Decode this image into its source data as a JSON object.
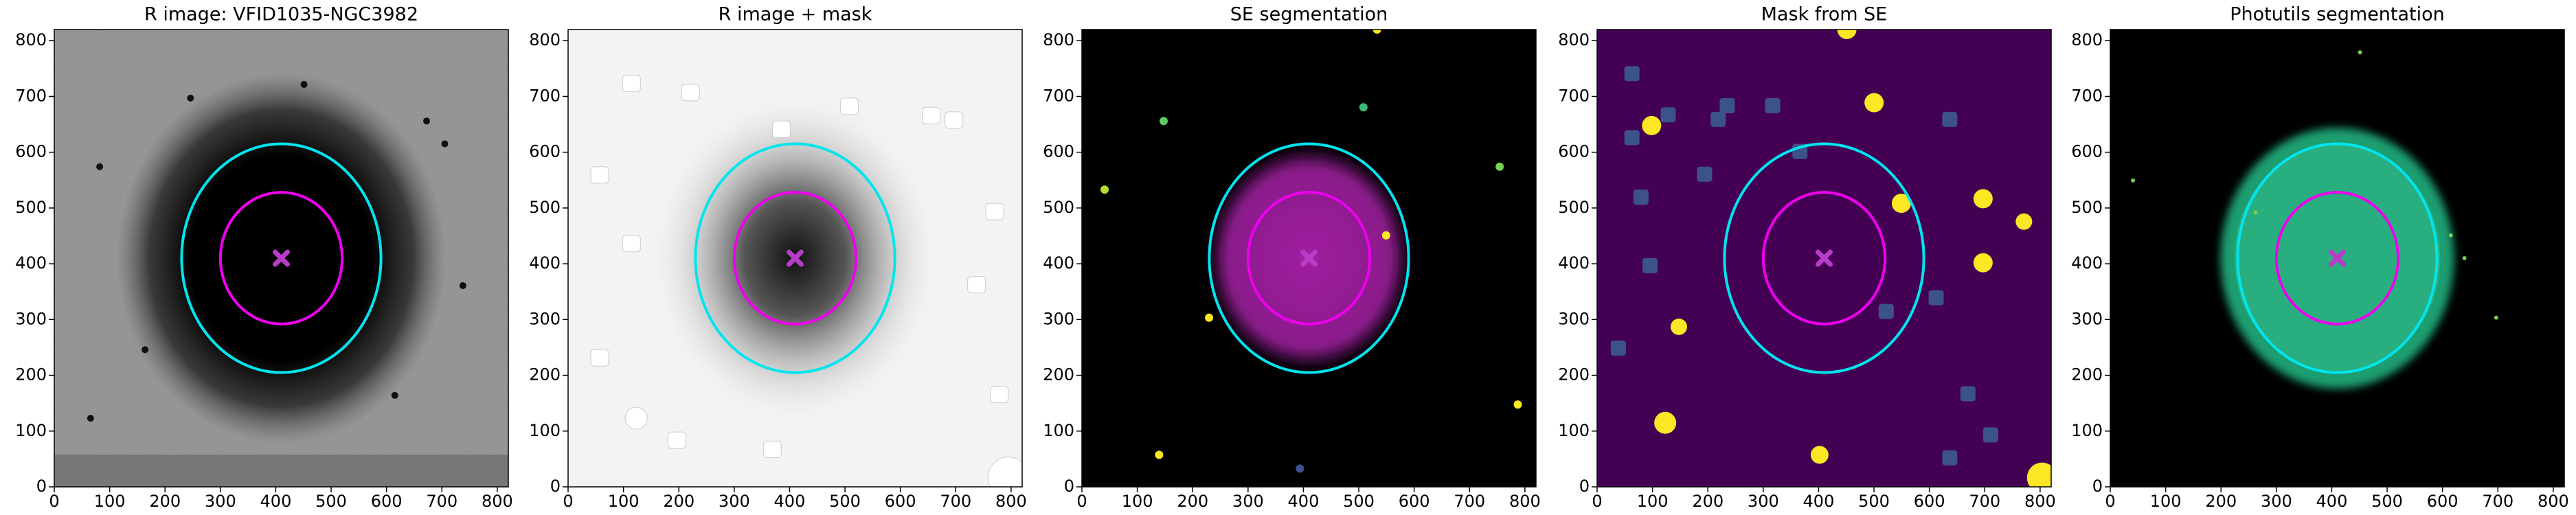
{
  "chart_data": [
    {
      "type": "image",
      "title": "R image: VFID1035-NGC3982",
      "xlim": [
        0,
        820
      ],
      "ylim": [
        0,
        820
      ],
      "xticks": [
        0,
        100,
        200,
        300,
        400,
        500,
        600,
        700,
        800
      ],
      "yticks": [
        0,
        100,
        200,
        300,
        400,
        500,
        600,
        700,
        800
      ],
      "ellipses": [
        {
          "cx": 410,
          "cy": 410,
          "rx": 180,
          "ry": 205,
          "color": "#00e5ee"
        },
        {
          "cx": 410,
          "cy": 410,
          "rx": 110,
          "ry": 118,
          "color": "#ee00ee"
        }
      ],
      "marker": {
        "x": 410,
        "y": 410,
        "color": "#b83cc8"
      }
    },
    {
      "type": "image",
      "title": "R image + mask",
      "xlim": [
        0,
        820
      ],
      "ylim": [
        0,
        820
      ],
      "xticks": [
        0,
        100,
        200,
        300,
        400,
        500,
        600,
        700,
        800
      ],
      "yticks": [
        0,
        100,
        200,
        300,
        400,
        500,
        600,
        700,
        800
      ],
      "ellipses": [
        {
          "cx": 410,
          "cy": 410,
          "rx": 180,
          "ry": 205,
          "color": "#00e5ee"
        },
        {
          "cx": 410,
          "cy": 410,
          "rx": 110,
          "ry": 118,
          "color": "#ee00ee"
        }
      ],
      "marker": {
        "x": 410,
        "y": 410,
        "color": "#b83cc8"
      }
    },
    {
      "type": "image",
      "title": "SE segmentation",
      "xlim": [
        0,
        820
      ],
      "ylim": [
        0,
        820
      ],
      "xticks": [
        0,
        100,
        200,
        300,
        400,
        500,
        600,
        700,
        800
      ],
      "yticks": [
        0,
        100,
        200,
        300,
        400,
        500,
        600,
        700,
        800
      ],
      "ellipses": [
        {
          "cx": 410,
          "cy": 410,
          "rx": 180,
          "ry": 205,
          "color": "#00e5ee"
        },
        {
          "cx": 410,
          "cy": 410,
          "rx": 110,
          "ry": 118,
          "color": "#ee00ee"
        }
      ],
      "marker": {
        "x": 410,
        "y": 410,
        "color": "#b83cc8"
      }
    },
    {
      "type": "image",
      "title": "Mask from SE",
      "xlim": [
        0,
        820
      ],
      "ylim": [
        0,
        820
      ],
      "xticks": [
        0,
        100,
        200,
        300,
        400,
        500,
        600,
        700,
        800
      ],
      "yticks": [
        0,
        100,
        200,
        300,
        400,
        500,
        600,
        700,
        800
      ],
      "ellipses": [
        {
          "cx": 410,
          "cy": 410,
          "rx": 180,
          "ry": 205,
          "color": "#00e5ee"
        },
        {
          "cx": 410,
          "cy": 410,
          "rx": 110,
          "ry": 118,
          "color": "#ee00ee"
        }
      ],
      "marker": {
        "x": 410,
        "y": 410,
        "color": "#b83cc8"
      }
    },
    {
      "type": "image",
      "title": "Photutils segmentation",
      "xlim": [
        0,
        820
      ],
      "ylim": [
        0,
        820
      ],
      "xticks": [
        0,
        100,
        200,
        300,
        400,
        500,
        600,
        700,
        800
      ],
      "yticks": [
        0,
        100,
        200,
        300,
        400,
        500,
        600,
        700,
        800
      ],
      "ellipses": [
        {
          "cx": 410,
          "cy": 410,
          "rx": 180,
          "ry": 205,
          "color": "#00e5ee"
        },
        {
          "cx": 410,
          "cy": 410,
          "rx": 110,
          "ry": 118,
          "color": "#ee00ee"
        }
      ],
      "marker": {
        "x": 410,
        "y": 410,
        "color": "#b83cc8"
      }
    }
  ]
}
